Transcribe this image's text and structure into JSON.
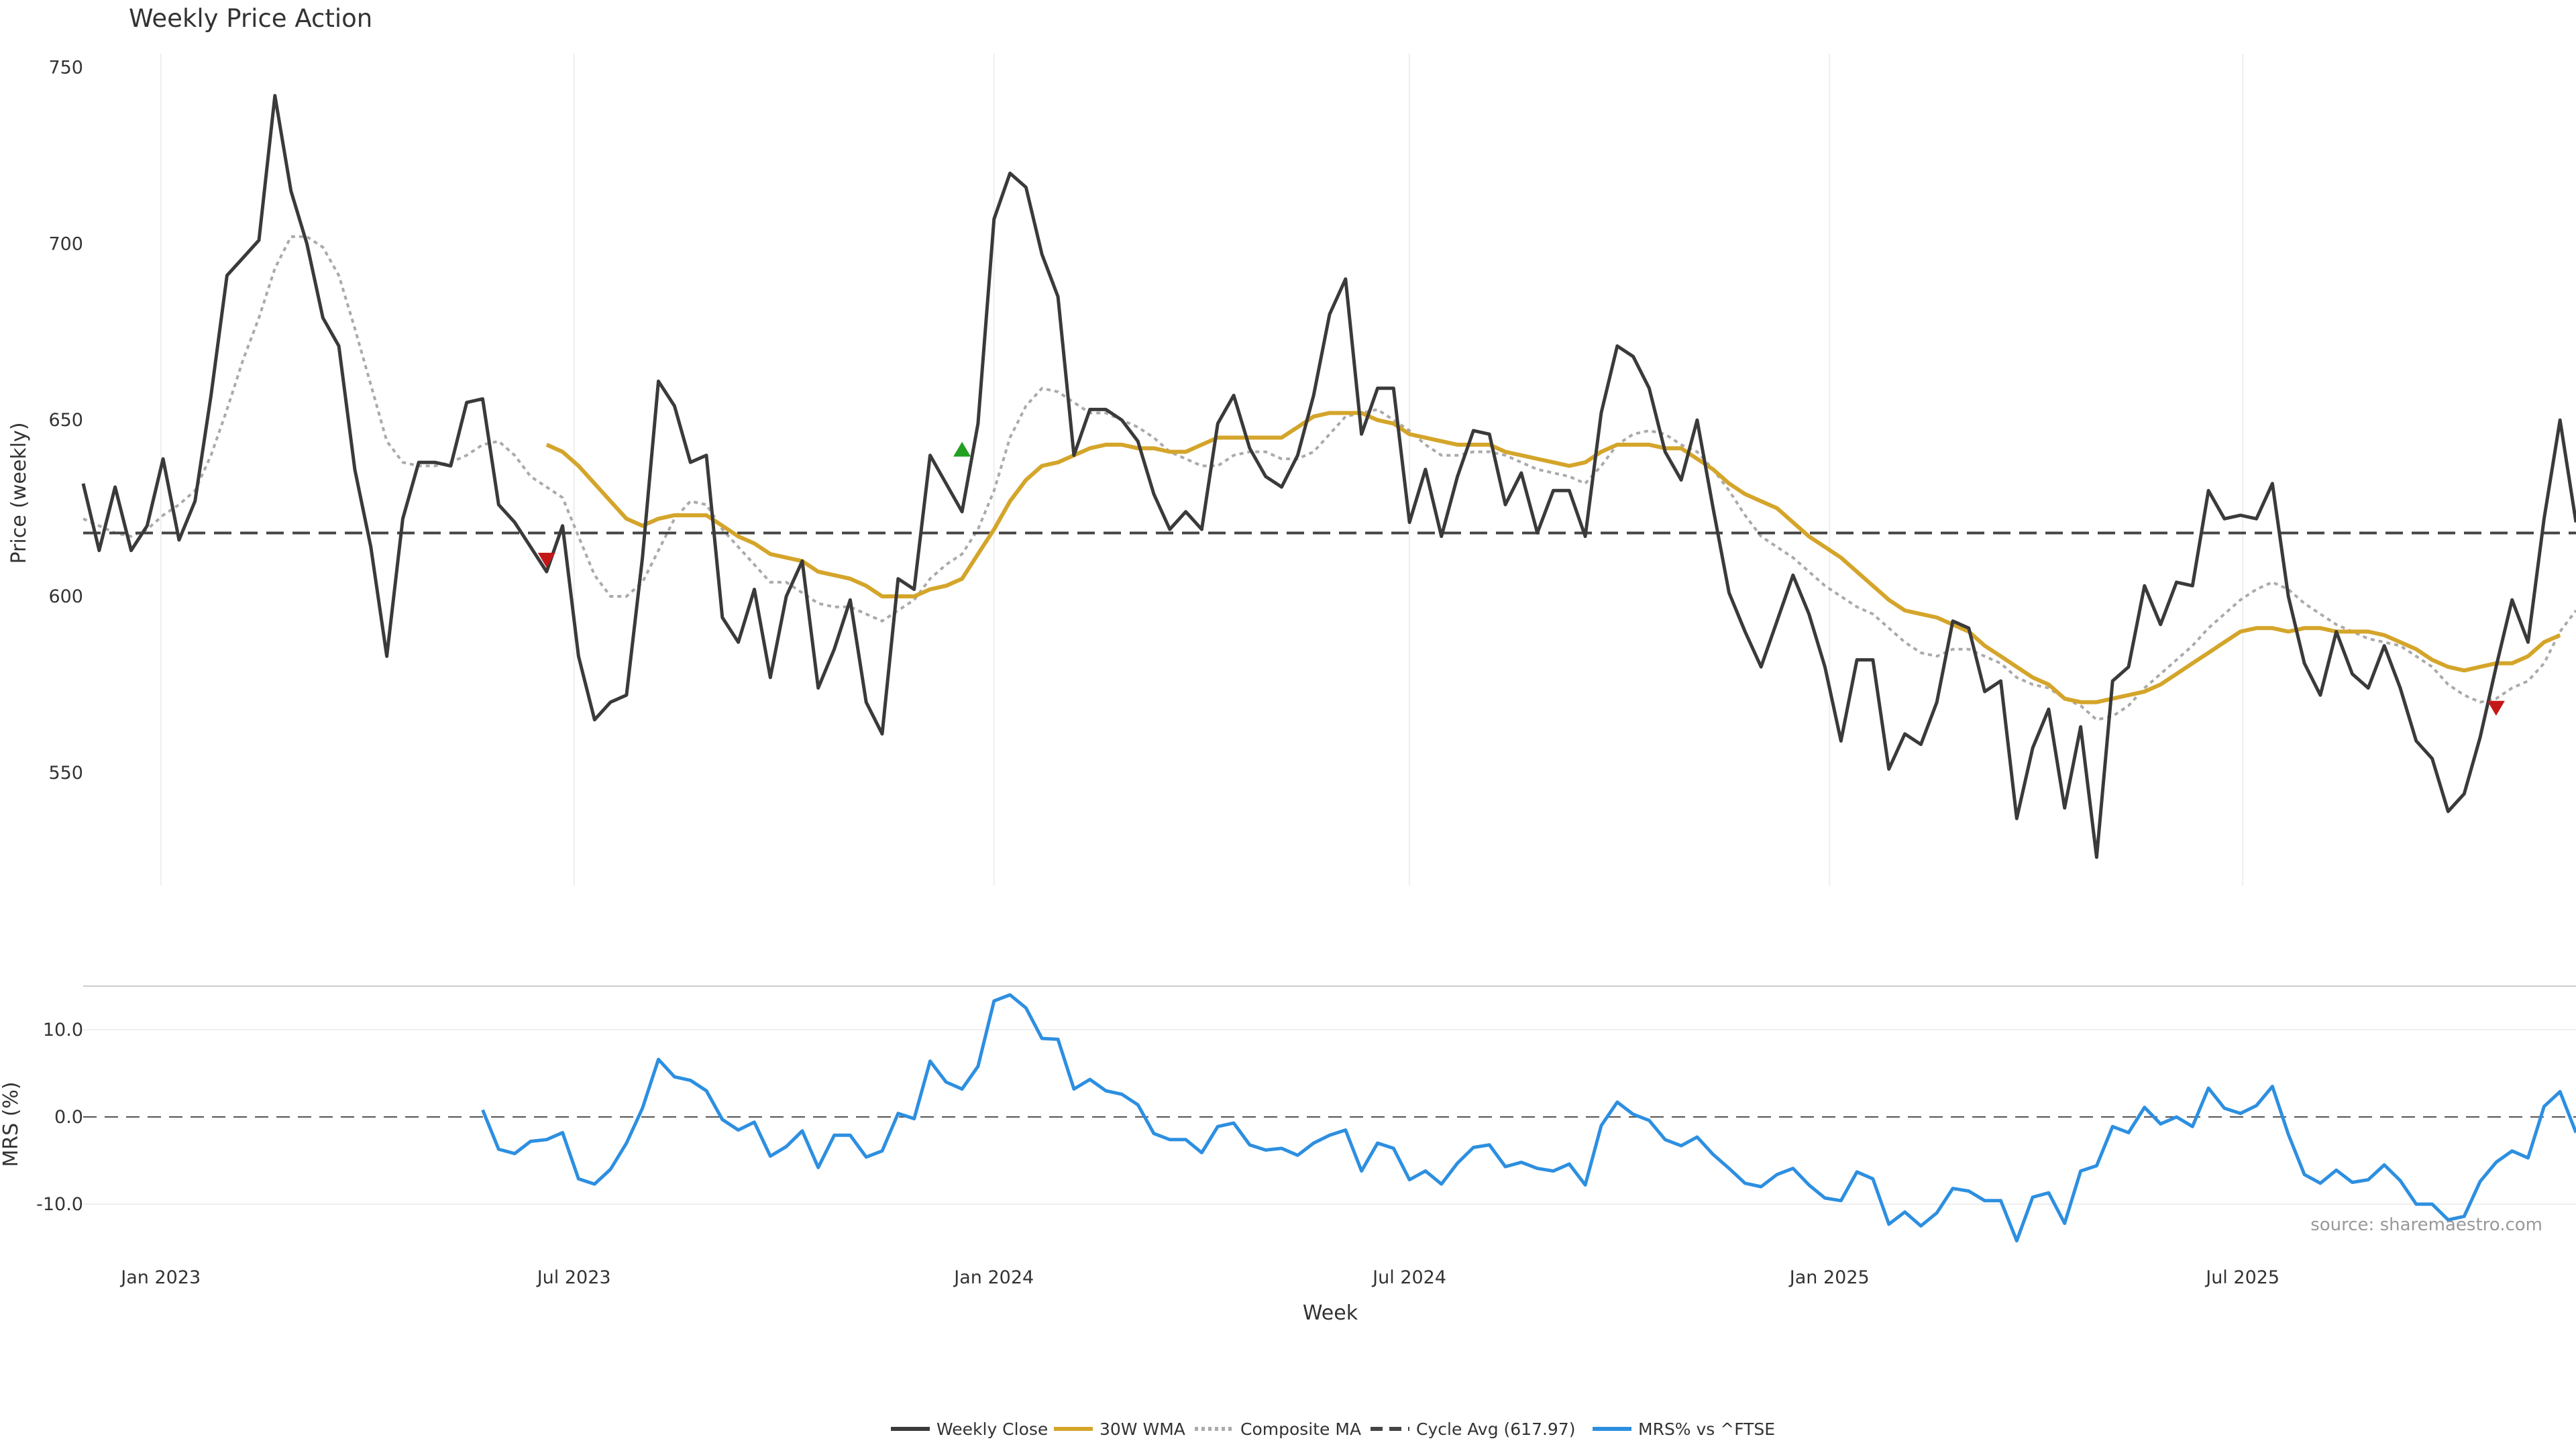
{
  "chart_data": {
    "type": "line",
    "title": "Weekly Price Action",
    "xlabel": "Week",
    "source": "source: sharemaestro.com",
    "x_start": "2022-11-28",
    "x_range": [
      "2022-11-28",
      "2025-11-24"
    ],
    "x_ticks": [
      {
        "date": "2023-01-01",
        "label": "Jan 2023"
      },
      {
        "date": "2023-07-01",
        "label": "Jul 2023"
      },
      {
        "date": "2024-01-01",
        "label": "Jan 2024"
      },
      {
        "date": "2024-07-01",
        "label": "Jul 2024"
      },
      {
        "date": "2025-01-01",
        "label": "Jan 2025"
      },
      {
        "date": "2025-07-01",
        "label": "Jul 2025"
      }
    ],
    "price_panel": {
      "ylabel": "Price (weekly)",
      "ylim": [
        518,
        752
      ],
      "y_ticks": [
        550,
        600,
        650,
        700,
        750
      ],
      "grid": "vertical",
      "series": [
        {
          "name": "Weekly Close",
          "color": "#3a3a3a",
          "style": "solid",
          "start_week": 0,
          "values": [
            632,
            613,
            631,
            613,
            620,
            639,
            616,
            627,
            657,
            691,
            696,
            701,
            742,
            715,
            700,
            679,
            671,
            636,
            614,
            583,
            622,
            638,
            638,
            637,
            655,
            656,
            626,
            621,
            614,
            607,
            620,
            583,
            565,
            570,
            572,
            611,
            661,
            654,
            638,
            640,
            594,
            587,
            602,
            577,
            600,
            610,
            574,
            585,
            599,
            570,
            561,
            605,
            602,
            640,
            632,
            624,
            649,
            707,
            720,
            716,
            697,
            685,
            640,
            653,
            653,
            650,
            644,
            629,
            619,
            624,
            619,
            649,
            657,
            642,
            634,
            631,
            640,
            657,
            680,
            690,
            646,
            659,
            659,
            621,
            636,
            617,
            634,
            647,
            646,
            626,
            635,
            618,
            630,
            630,
            617,
            652,
            671,
            668,
            659,
            641,
            633,
            650,
            625,
            601,
            590,
            580,
            593,
            606,
            595,
            580,
            559,
            582,
            582,
            551,
            561,
            558,
            570,
            593,
            591,
            573,
            576,
            537,
            557,
            568,
            540,
            563,
            526,
            576,
            580,
            603,
            592,
            604,
            603,
            630,
            622,
            623,
            622,
            632,
            600,
            581,
            572,
            590,
            578,
            574,
            586,
            574,
            559,
            554,
            539,
            544,
            560,
            580,
            599,
            587,
            622,
            650,
            621
          ]
        },
        {
          "name": "30W WMA",
          "color": "#d4a52a",
          "style": "solid",
          "start_week": 29,
          "values": [
            643,
            641,
            637,
            632,
            627,
            622,
            620,
            622,
            623,
            623,
            623,
            620,
            617,
            615,
            612,
            611,
            610,
            607,
            606,
            605,
            603,
            600,
            600,
            600,
            602,
            603,
            605,
            612,
            619,
            627,
            633,
            637,
            638,
            640,
            642,
            643,
            643,
            642,
            642,
            641,
            641,
            643,
            645,
            645,
            645,
            645,
            645,
            648,
            651,
            652,
            652,
            652,
            650,
            649,
            646,
            645,
            644,
            643,
            643,
            643,
            641,
            640,
            639,
            638,
            637,
            638,
            641,
            643,
            643,
            643,
            642,
            642,
            639,
            636,
            632,
            629,
            627,
            625,
            621,
            617,
            614,
            611,
            607,
            603,
            599,
            596,
            595,
            594,
            592,
            590,
            586,
            583,
            580,
            577,
            575,
            571,
            570,
            570,
            571,
            572,
            573,
            575,
            578,
            581,
            584,
            587,
            590,
            591,
            591,
            590,
            591,
            591,
            590,
            590,
            590,
            589,
            587,
            585,
            582,
            580,
            579,
            580,
            581,
            581,
            583,
            587,
            589
          ]
        },
        {
          "name": "Composite MA",
          "color": "#aaaaaa",
          "style": "dotted",
          "start_week": 0,
          "values": [
            622,
            620,
            618,
            617,
            619,
            623,
            626,
            630,
            640,
            653,
            667,
            679,
            693,
            702,
            702,
            699,
            691,
            676,
            660,
            644,
            638,
            637,
            637,
            638,
            640,
            643,
            644,
            640,
            634,
            631,
            628,
            617,
            606,
            600,
            600,
            604,
            613,
            622,
            627,
            626,
            619,
            614,
            609,
            604,
            604,
            601,
            598,
            597,
            597,
            595,
            593,
            596,
            599,
            605,
            609,
            612,
            619,
            630,
            645,
            654,
            659,
            658,
            655,
            652,
            652,
            650,
            648,
            645,
            641,
            639,
            637,
            637,
            640,
            641,
            641,
            639,
            639,
            641,
            646,
            651,
            652,
            653,
            650,
            647,
            643,
            640,
            640,
            641,
            641,
            640,
            638,
            636,
            635,
            634,
            632,
            637,
            643,
            646,
            647,
            646,
            643,
            641,
            636,
            630,
            623,
            617,
            614,
            611,
            607,
            603,
            600,
            597,
            595,
            591,
            587,
            584,
            583,
            585,
            585,
            583,
            581,
            577,
            575,
            574,
            571,
            569,
            565,
            566,
            569,
            574,
            578,
            582,
            586,
            591,
            595,
            599,
            602,
            604,
            602,
            598,
            595,
            592,
            590,
            588,
            587,
            586,
            583,
            580,
            575,
            572,
            570,
            571,
            574,
            576,
            581,
            590,
            596
          ]
        },
        {
          "name": "Cycle Avg (617.97)",
          "color": "#444444",
          "style": "dashed",
          "constant": 617.97
        }
      ],
      "markers": [
        {
          "type": "sell",
          "date": "2023-06-19",
          "value": 611,
          "color": "#c41818"
        },
        {
          "type": "buy",
          "date": "2023-12-18",
          "value": 641,
          "color": "#21a021"
        },
        {
          "type": "sell",
          "date": "2025-10-20",
          "value": 569,
          "color": "#c41818"
        }
      ]
    },
    "mrs_panel": {
      "ylabel": "MRS (%)",
      "ylim": [
        -15,
        15
      ],
      "y_ticks": [
        -10,
        0,
        10
      ],
      "y_tick_labels": [
        "-10.0",
        "0.0",
        "10.0"
      ],
      "zero_line": true,
      "series": [
        {
          "name": "MRS% vs ^FTSE",
          "color": "#2d8fe0",
          "style": "solid",
          "start_week": 25,
          "values": [
            0.8,
            -3.7,
            -4.2,
            -2.8,
            -2.6,
            -1.8,
            -7.1,
            -7.7,
            -6.0,
            -3.0,
            1.0,
            6.6,
            4.6,
            4.2,
            3.0,
            -0.3,
            -1.5,
            -0.6,
            -4.5,
            -3.4,
            -1.6,
            -5.8,
            -2.1,
            -2.1,
            -4.6,
            -3.9,
            0.4,
            -0.2,
            6.4,
            4.0,
            3.2,
            5.8,
            13.3,
            14.0,
            12.5,
            9.0,
            8.9,
            3.2,
            4.3,
            3.0,
            2.6,
            1.4,
            -1.9,
            -2.6,
            -2.6,
            -4.1,
            -1.1,
            -0.7,
            -3.2,
            -3.8,
            -3.6,
            -4.4,
            -3.0,
            -2.1,
            -1.5,
            -6.2,
            -3.0,
            -3.6,
            -7.2,
            -6.2,
            -7.7,
            -5.3,
            -3.5,
            -3.2,
            -5.7,
            -5.2,
            -5.9,
            -6.2,
            -5.4,
            -7.8,
            -1.0,
            1.7,
            0.3,
            -0.4,
            -2.6,
            -3.3,
            -2.3,
            -4.3,
            -5.9,
            -7.6,
            -8.0,
            -6.6,
            -5.9,
            -7.8,
            -9.3,
            -9.6,
            -6.3,
            -7.1,
            -12.3,
            -10.9,
            -12.5,
            -11.0,
            -8.2,
            -8.5,
            -9.6,
            -9.6,
            -14.2,
            -9.2,
            -8.7,
            -12.2,
            -6.2,
            -5.6,
            -1.1,
            -1.8,
            1.1,
            -0.8,
            0.0,
            -1.1,
            3.3,
            1.0,
            0.4,
            1.3,
            3.5,
            -2.0,
            -6.6,
            -7.6,
            -6.1,
            -7.5,
            -7.2,
            -5.5,
            -7.3,
            -10.0,
            -10.0,
            -11.8,
            -11.4,
            -7.4,
            -5.2,
            -3.9,
            -4.7,
            1.2,
            2.9,
            -1.8
          ]
        }
      ]
    },
    "legend": {
      "placement": "bottom-center",
      "entries": [
        {
          "label": "Weekly Close",
          "color": "#3a3a3a",
          "style": "solid"
        },
        {
          "label": "30W WMA",
          "color": "#d4a52a",
          "style": "solid"
        },
        {
          "label": "Composite MA",
          "color": "#aaaaaa",
          "style": "dotted"
        },
        {
          "label": "Cycle Avg (617.97)",
          "color": "#444444",
          "style": "dashed"
        },
        {
          "label": "MRS% vs ^FTSE",
          "color": "#2d8fe0",
          "style": "solid"
        }
      ]
    }
  }
}
